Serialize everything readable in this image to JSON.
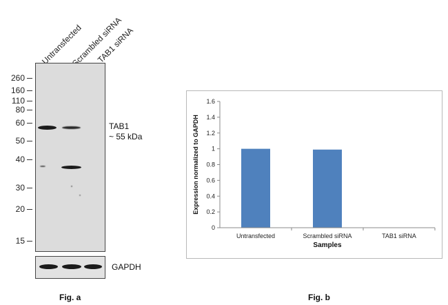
{
  "figure_a": {
    "caption": "Fig. a",
    "lanes": [
      "Untransfected",
      "Scrambled siRNA",
      "TAB1 siRNA"
    ],
    "mw_markers": [
      "260",
      "160",
      "110",
      "80",
      "60",
      "50",
      "40",
      "30",
      "20",
      "15"
    ],
    "target_label": "TAB1",
    "target_size": "~ 55 kDa",
    "loading_control": "GAPDH"
  },
  "figure_b": {
    "caption": "Fig. b"
  },
  "chart_data": {
    "type": "bar",
    "categories": [
      "Untransfected",
      "Scrambled siRNA",
      "TAB1 siRNA"
    ],
    "series": [
      {
        "values": [
          1.0,
          0.99,
          0.0
        ],
        "color": "#4f81bd"
      }
    ],
    "title": "",
    "xlabel": "Samples",
    "ylabel": "Expression normalized to GAPDH",
    "ylim": [
      0,
      1.6
    ],
    "yticks": [
      "0",
      "0.2",
      "0.4",
      "0.6",
      "0.8",
      "1",
      "1.2",
      "1.4",
      "1.6"
    ],
    "grid": false,
    "legend": "none"
  }
}
